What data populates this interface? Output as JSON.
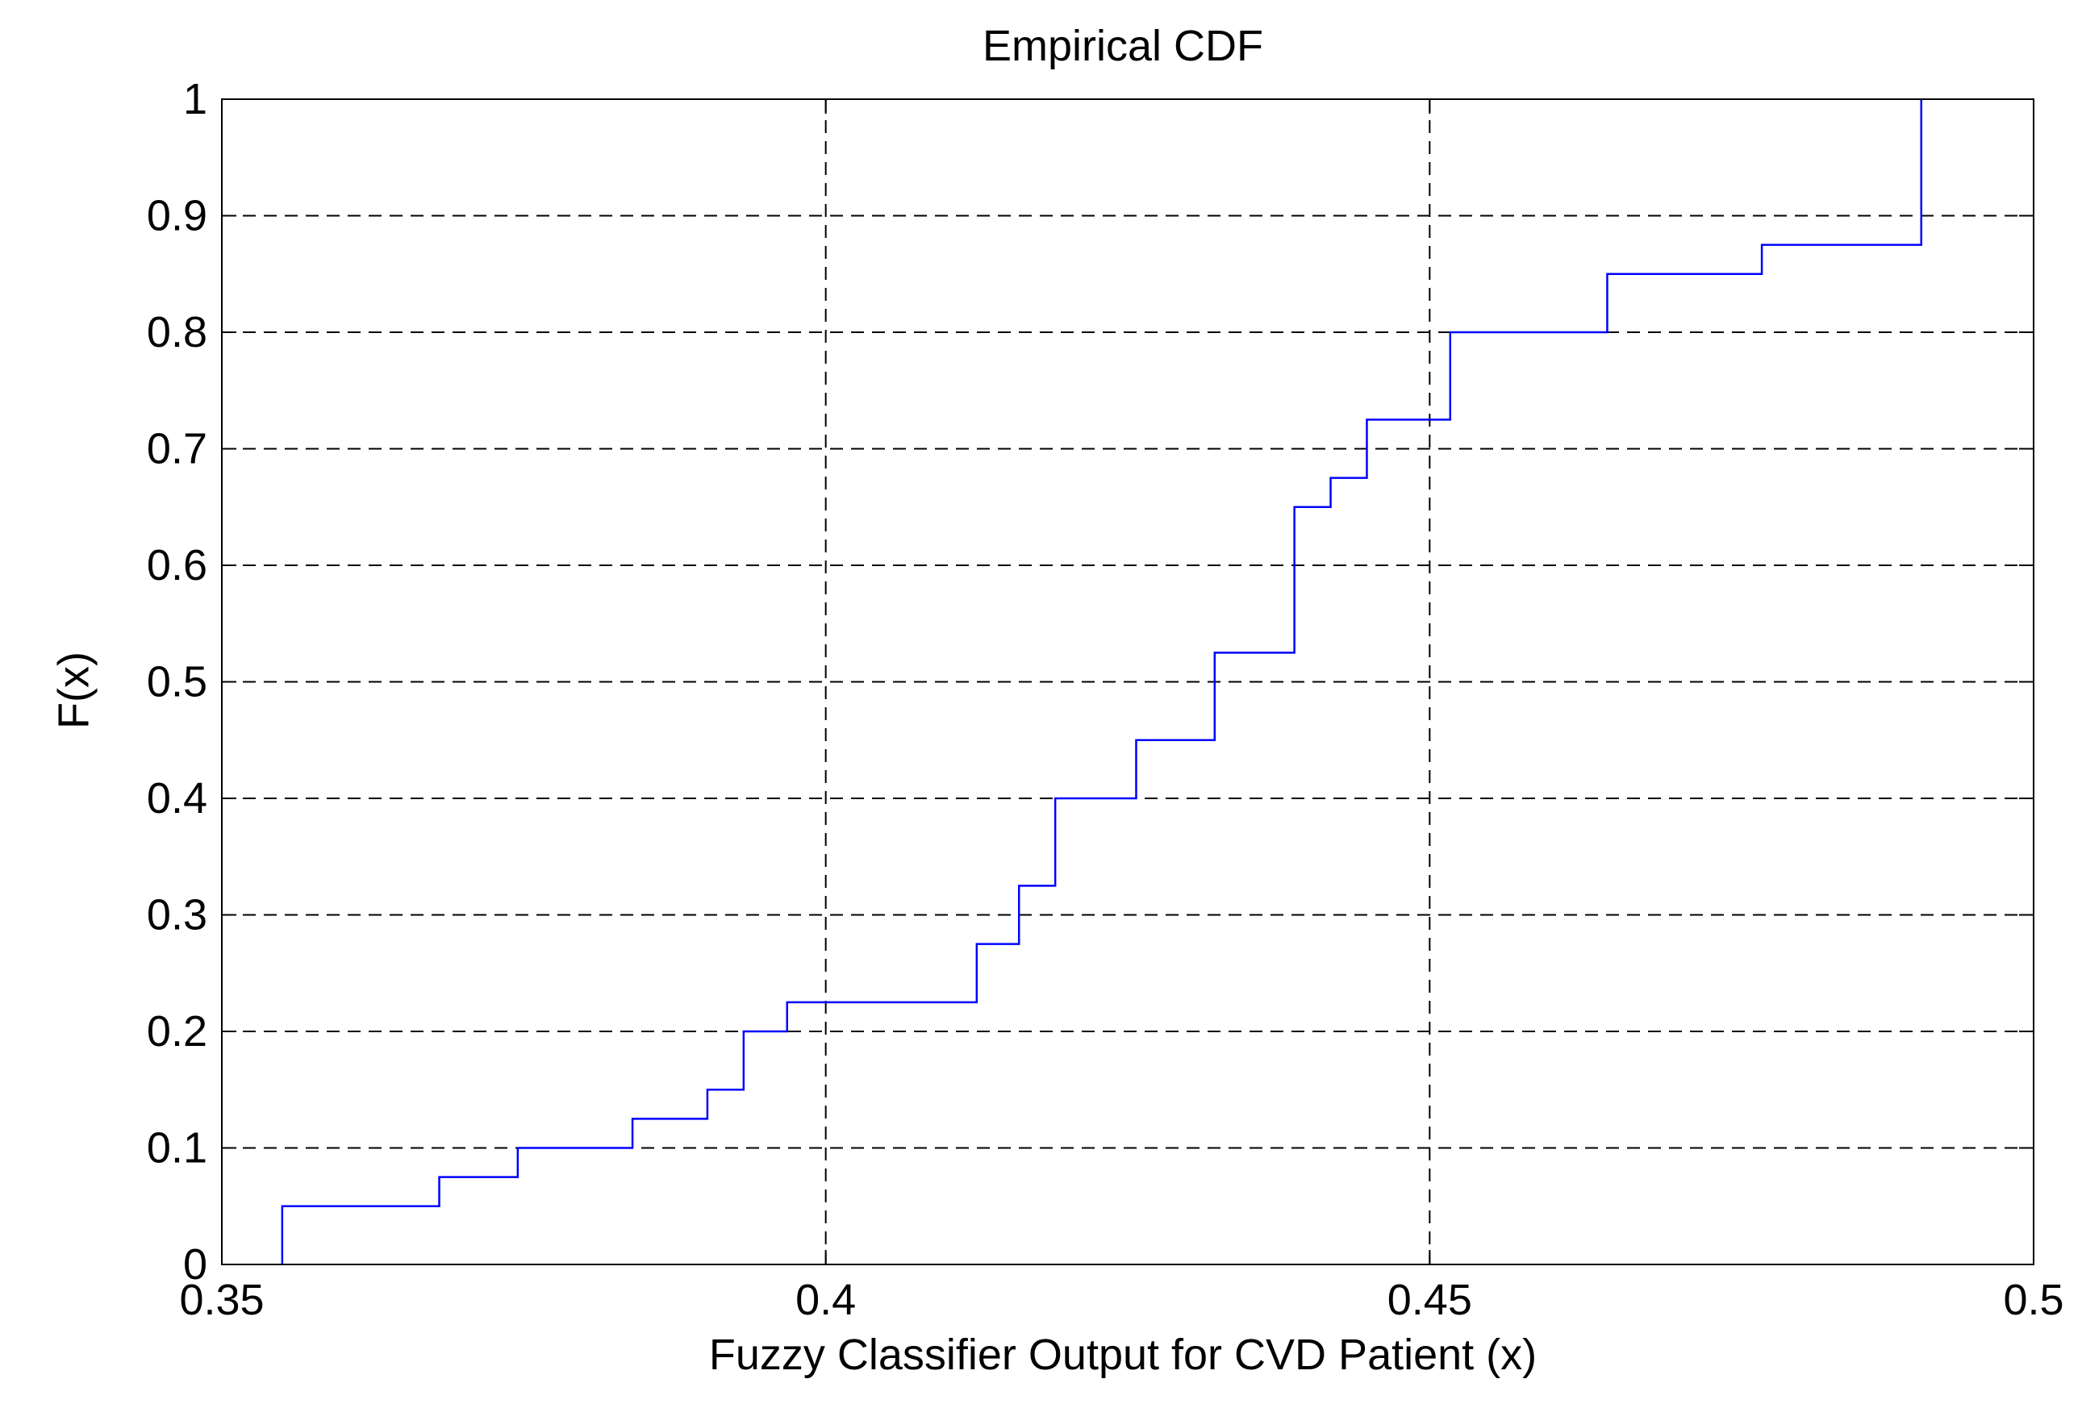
{
  "chart_data": {
    "type": "line",
    "title": "Empirical CDF",
    "xlabel": "Fuzzy Classifier Output for CVD Patient (x)",
    "ylabel": "F(x)",
    "xlim": [
      0.35,
      0.5
    ],
    "ylim": [
      0,
      1
    ],
    "xticks": [
      "0.35",
      "0.4",
      "0.45",
      "0.5"
    ],
    "yticks": [
      "0",
      "0.1",
      "0.2",
      "0.3",
      "0.4",
      "0.5",
      "0.6",
      "0.7",
      "0.8",
      "0.9",
      "1"
    ],
    "grid": true,
    "line_color": "#0000ff",
    "grid_color": "#000000",
    "series": [
      {
        "step": "post",
        "x": [
          0.355,
          0.368,
          0.3745,
          0.384,
          0.3902,
          0.3932,
          0.3968,
          0.4125,
          0.416,
          0.419,
          0.4257,
          0.4322,
          0.4388,
          0.4418,
          0.4448,
          0.4517,
          0.4647,
          0.4775,
          0.4907
        ],
        "y": [
          0.05,
          0.075,
          0.1,
          0.125,
          0.15,
          0.2,
          0.225,
          0.275,
          0.325,
          0.4,
          0.45,
          0.525,
          0.65,
          0.675,
          0.725,
          0.8,
          0.85,
          0.875,
          1.0
        ]
      }
    ]
  }
}
